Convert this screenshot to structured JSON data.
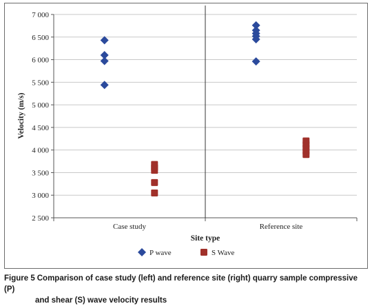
{
  "chart_data": {
    "type": "scatter",
    "xlabel": "Site type",
    "ylabel": "Velocity (m/s)",
    "categories": [
      "Case study",
      "Reference site"
    ],
    "ylim": [
      2500,
      7000
    ],
    "yticks": [
      "2 500",
      "3 000",
      "3 500",
      "4 000",
      "4 500",
      "5 000",
      "5 500",
      "6 000",
      "6 500",
      "7 000"
    ],
    "ytick_values": [
      2500,
      3000,
      3500,
      4000,
      4500,
      5000,
      5500,
      6000,
      6500,
      7000
    ],
    "grid": true,
    "legend_position": "bottom",
    "series": [
      {
        "name": "P wave",
        "marker": "diamond",
        "color": "#2b4a9c",
        "points": [
          {
            "x": "Case study",
            "y": 6430
          },
          {
            "x": "Case study",
            "y": 6100
          },
          {
            "x": "Case study",
            "y": 5970
          },
          {
            "x": "Case study",
            "y": 5440
          },
          {
            "x": "Reference site",
            "y": 6760
          },
          {
            "x": "Reference site",
            "y": 6650
          },
          {
            "x": "Reference site",
            "y": 6580
          },
          {
            "x": "Reference site",
            "y": 6520
          },
          {
            "x": "Reference site",
            "y": 6450
          },
          {
            "x": "Reference site",
            "y": 5960
          }
        ]
      },
      {
        "name": "S Wave",
        "marker": "square",
        "color": "#a0302a",
        "points": [
          {
            "x": "Case study",
            "y": 3680
          },
          {
            "x": "Case study",
            "y": 3610
          },
          {
            "x": "Case study",
            "y": 3550
          },
          {
            "x": "Case study",
            "y": 3280
          },
          {
            "x": "Case study",
            "y": 3050
          },
          {
            "x": "Reference site",
            "y": 4200
          },
          {
            "x": "Reference site",
            "y": 4120
          },
          {
            "x": "Reference site",
            "y": 4050
          },
          {
            "x": "Reference site",
            "y": 3970
          },
          {
            "x": "Reference site",
            "y": 3900
          }
        ]
      }
    ]
  },
  "caption": {
    "label": "Figure 5",
    "line1": "Comparison of case study (left) and reference site (right) quarry sample compressive (P)",
    "line2": "and shear (S) wave velocity results"
  }
}
